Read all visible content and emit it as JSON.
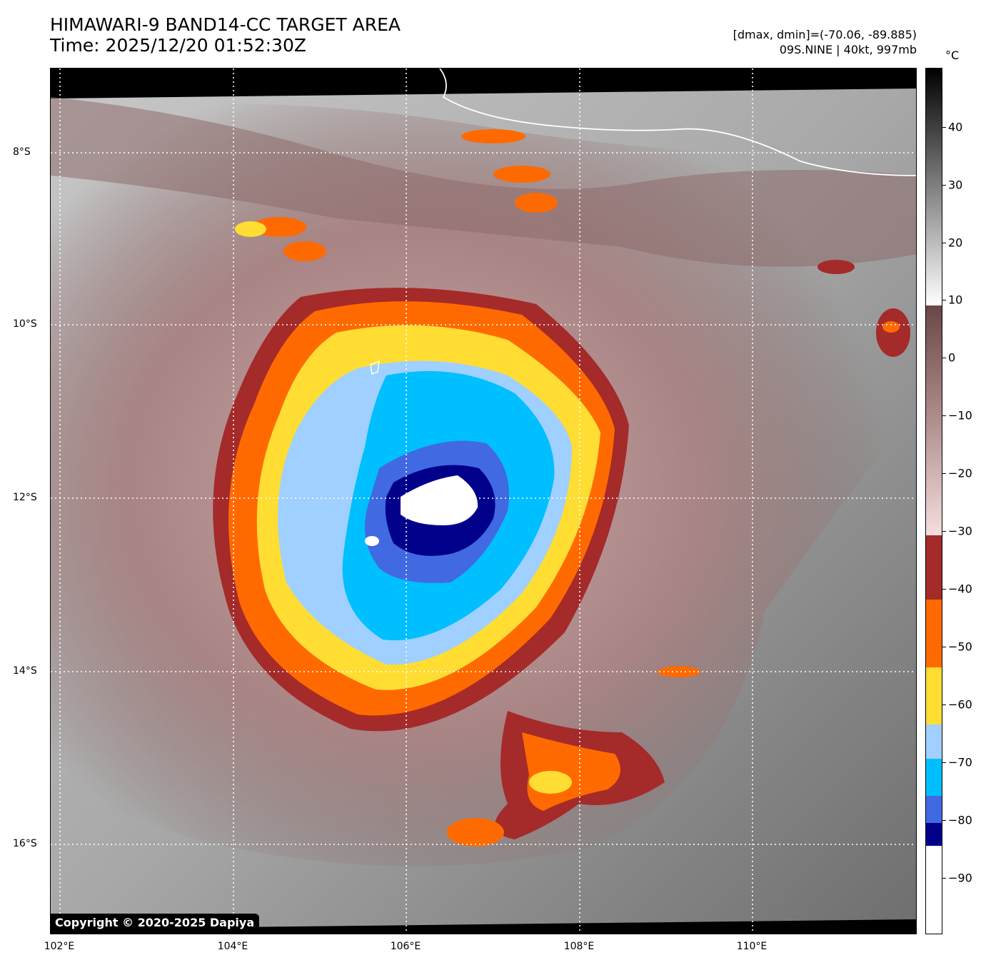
{
  "header": {
    "title_line1": "HIMAWARI-9 BAND14-CC TARGET AREA",
    "title_line2": "Time: 2025/12/20 01:52:30Z",
    "range_text": "[dmax, dmin]=(-70.06, -89.885)",
    "storm_text": "09S.NINE | 40kt, 997mb"
  },
  "colorbar": {
    "unit": "°C",
    "ticks": [
      "40",
      "30",
      "20",
      "10",
      "0",
      "−10",
      "−20",
      "−30",
      "−40",
      "−50",
      "−60",
      "−70",
      "−80",
      "−90"
    ]
  },
  "axes": {
    "lat_labels": [
      "8°S",
      "10°S",
      "12°S",
      "14°S",
      "16°S"
    ],
    "lon_labels": [
      "102°E",
      "104°E",
      "106°E",
      "108°E",
      "110°E"
    ]
  },
  "copyright": "Copyright © 2020-2025 Dapiya",
  "colors": {
    "frame_black": "#000000",
    "coast": "#ffffff",
    "red": "#a52a2a",
    "orange": "#ff6a00",
    "yellow": "#ffdd33",
    "light_blue": "#a0d0ff",
    "cyan": "#00bfff",
    "royal_blue": "#4169e1",
    "navy": "#00008b"
  }
}
